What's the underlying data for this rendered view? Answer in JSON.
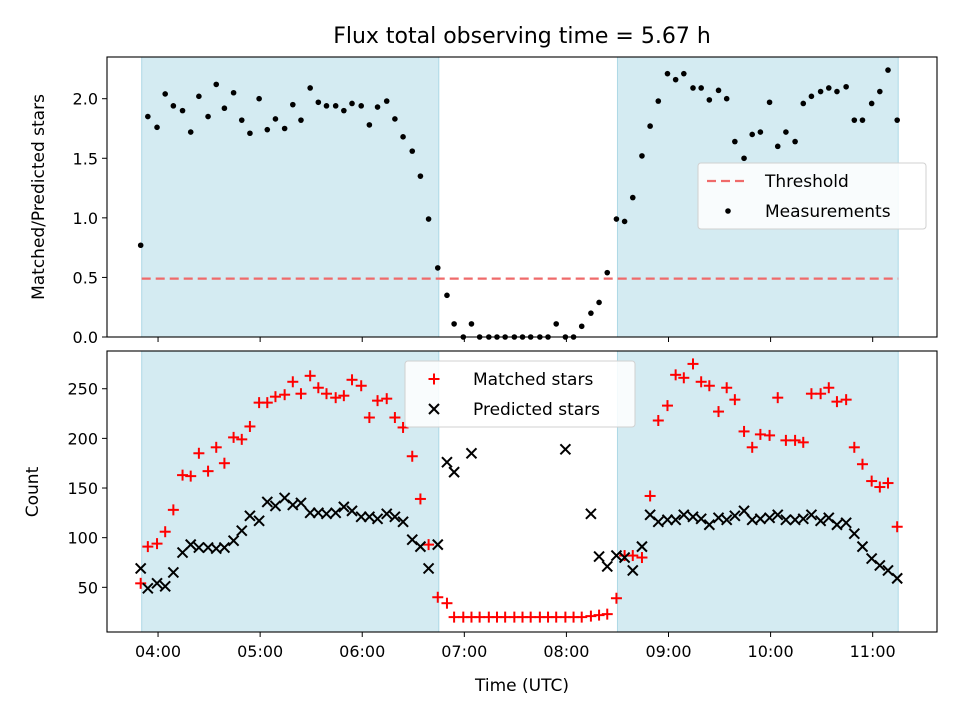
{
  "title": "Flux total observing time = 5.67 h",
  "colors": {
    "shade": "#add8e6",
    "threshold": "#ef6a6a",
    "matched": "#ff0000",
    "predicted": "#000000",
    "measurement": "#000000"
  },
  "chart_data": [
    {
      "type": "scatter",
      "panel": "top",
      "ylabel": "Matched/Predicted stars",
      "xlim": [
        3.5,
        11.63
      ],
      "ylim": [
        0,
        2.35
      ],
      "yticks": [
        0.0,
        0.5,
        1.0,
        1.5,
        2.0
      ],
      "ytick_labels": [
        "0.0",
        "0.5",
        "1.0",
        "1.5",
        "2.0"
      ],
      "shaded_intervals": [
        [
          3.84,
          6.75
        ],
        [
          8.5,
          11.25
        ]
      ],
      "legend": {
        "position": "center-right",
        "entries": [
          "Threshold",
          "Measurements"
        ]
      },
      "threshold": {
        "name": "Threshold",
        "value": 0.49,
        "x_range": [
          3.84,
          11.25
        ]
      },
      "series": [
        {
          "name": "Measurements",
          "x": [
            3.83,
            3.9,
            3.99,
            4.07,
            4.15,
            4.24,
            4.32,
            4.4,
            4.49,
            4.57,
            4.65,
            4.74,
            4.82,
            4.9,
            4.99,
            5.07,
            5.15,
            5.24,
            5.32,
            5.4,
            5.49,
            5.57,
            5.65,
            5.74,
            5.82,
            5.9,
            5.99,
            6.07,
            6.15,
            6.24,
            6.32,
            6.4,
            6.49,
            6.57,
            6.65,
            6.74,
            6.83,
            6.9,
            6.99,
            7.07,
            7.15,
            7.24,
            7.32,
            7.4,
            7.49,
            7.57,
            7.65,
            7.74,
            7.82,
            7.9,
            7.99,
            8.07,
            8.15,
            8.24,
            8.32,
            8.4,
            8.49,
            8.57,
            8.65,
            8.74,
            8.82,
            8.9,
            8.99,
            9.07,
            9.15,
            9.24,
            9.32,
            9.4,
            9.49,
            9.57,
            9.65,
            9.74,
            9.82,
            9.9,
            9.99,
            10.07,
            10.15,
            10.24,
            10.32,
            10.4,
            10.49,
            10.57,
            10.65,
            10.74,
            10.82,
            10.9,
            10.99,
            11.07,
            11.15,
            11.24
          ],
          "y": [
            0.77,
            1.85,
            1.76,
            2.04,
            1.94,
            1.9,
            1.72,
            2.02,
            1.85,
            2.12,
            1.92,
            2.05,
            1.82,
            1.71,
            2.0,
            1.74,
            1.83,
            1.75,
            1.95,
            1.82,
            2.09,
            1.97,
            1.94,
            1.94,
            1.9,
            1.96,
            1.94,
            1.78,
            1.93,
            1.98,
            1.83,
            1.68,
            1.56,
            1.35,
            0.99,
            0.58,
            0.35,
            0.11,
            0.0,
            0.11,
            0.0,
            0.0,
            0.0,
            0.0,
            0.0,
            0.0,
            0.0,
            0.0,
            0.0,
            0.11,
            0.0,
            0.0,
            0.09,
            0.2,
            0.29,
            0.54,
            0.99,
            0.97,
            1.17,
            1.52,
            1.77,
            1.98,
            2.21,
            2.16,
            2.21,
            2.09,
            2.09,
            1.99,
            2.07,
            2.0,
            1.64,
            1.5,
            1.7,
            1.72,
            1.97,
            1.6,
            1.72,
            1.64,
            1.96,
            2.02,
            2.06,
            2.09,
            2.06,
            2.1,
            1.82,
            1.82,
            1.96,
            2.06,
            2.24,
            1.82
          ]
        }
      ]
    },
    {
      "type": "scatter",
      "panel": "bottom",
      "ylabel": "Count",
      "xlabel": "Time (UTC)",
      "xlim": [
        3.5,
        11.63
      ],
      "ylim": [
        5,
        288
      ],
      "yticks": [
        50,
        100,
        150,
        200,
        250
      ],
      "xticks": [
        4,
        5,
        6,
        7,
        8,
        9,
        10,
        11
      ],
      "xtick_labels": [
        "04:00",
        "05:00",
        "06:00",
        "07:00",
        "08:00",
        "09:00",
        "10:00",
        "11:00"
      ],
      "shaded_intervals": [
        [
          3.84,
          6.75
        ],
        [
          8.5,
          11.25
        ]
      ],
      "legend": {
        "position": "upper-center",
        "entries": [
          "Matched stars",
          "Predicted stars"
        ]
      },
      "series": [
        {
          "name": "Matched stars",
          "marker": "+",
          "x": [
            3.83,
            3.9,
            3.99,
            4.07,
            4.15,
            4.24,
            4.32,
            4.4,
            4.49,
            4.57,
            4.65,
            4.74,
            4.82,
            4.9,
            4.99,
            5.07,
            5.15,
            5.24,
            5.32,
            5.4,
            5.49,
            5.57,
            5.65,
            5.74,
            5.82,
            5.9,
            5.99,
            6.07,
            6.15,
            6.24,
            6.32,
            6.4,
            6.49,
            6.57,
            6.65,
            6.74,
            6.83,
            6.9,
            6.99,
            7.07,
            7.15,
            7.24,
            7.32,
            7.4,
            7.49,
            7.57,
            7.65,
            7.74,
            7.82,
            7.9,
            7.99,
            8.07,
            8.15,
            8.24,
            8.32,
            8.4,
            8.49,
            8.57,
            8.65,
            8.74,
            8.82,
            8.9,
            8.99,
            9.07,
            9.15,
            9.24,
            9.32,
            9.4,
            9.49,
            9.57,
            9.65,
            9.74,
            9.82,
            9.9,
            9.99,
            10.07,
            10.15,
            10.24,
            10.32,
            10.4,
            10.49,
            10.57,
            10.65,
            10.74,
            10.82,
            10.9,
            10.99,
            11.07,
            11.15,
            11.24
          ],
          "y": [
            54,
            91,
            94,
            106,
            128,
            163,
            162,
            185,
            167,
            191,
            175,
            201,
            199,
            212,
            236,
            236,
            242,
            244,
            257,
            245,
            263,
            251,
            245,
            241,
            243,
            259,
            253,
            221,
            238,
            240,
            221,
            211,
            182,
            139,
            93,
            40,
            34,
            20,
            20,
            20,
            20,
            20,
            20,
            20,
            20,
            20,
            20,
            20,
            20,
            20,
            20,
            20,
            20,
            21,
            22,
            23,
            39,
            82,
            82,
            80,
            142,
            218,
            233,
            264,
            261,
            275,
            257,
            253,
            227,
            251,
            239,
            207,
            191,
            204,
            203,
            241,
            198,
            198,
            196,
            245,
            245,
            251,
            237,
            239,
            191,
            174,
            157,
            151,
            155,
            111
          ]
        },
        {
          "name": "Predicted stars",
          "marker": "x",
          "x": [
            3.83,
            3.9,
            3.99,
            4.07,
            4.15,
            4.24,
            4.32,
            4.4,
            4.49,
            4.57,
            4.65,
            4.74,
            4.82,
            4.9,
            4.99,
            5.07,
            5.15,
            5.24,
            5.32,
            5.4,
            5.49,
            5.57,
            5.65,
            5.74,
            5.82,
            5.9,
            5.99,
            6.07,
            6.15,
            6.24,
            6.32,
            6.4,
            6.49,
            6.57,
            6.65,
            6.74,
            6.83,
            6.9,
            7.07,
            7.99,
            8.24,
            8.32,
            8.4,
            8.49,
            8.57,
            8.65,
            8.74,
            8.82,
            8.9,
            8.99,
            9.07,
            9.15,
            9.24,
            9.32,
            9.4,
            9.49,
            9.57,
            9.65,
            9.74,
            9.82,
            9.9,
            9.99,
            10.07,
            10.15,
            10.24,
            10.32,
            10.4,
            10.49,
            10.57,
            10.65,
            10.74,
            10.82,
            10.9,
            10.99,
            11.07,
            11.15,
            11.24
          ],
          "y": [
            69,
            49,
            54,
            51,
            65,
            85,
            93,
            90,
            90,
            89,
            90,
            97,
            107,
            122,
            117,
            136,
            132,
            140,
            133,
            135,
            125,
            125,
            124,
            125,
            131,
            127,
            121,
            121,
            119,
            124,
            121,
            116,
            98,
            91,
            69,
            93,
            176,
            166,
            185,
            189,
            124,
            81,
            71,
            82,
            80,
            67,
            91,
            123,
            116,
            118,
            118,
            123,
            121,
            119,
            113,
            120,
            118,
            122,
            127,
            118,
            119,
            120,
            123,
            118,
            118,
            119,
            123,
            117,
            120,
            113,
            115,
            104,
            91,
            79,
            72,
            67,
            59
          ]
        }
      ]
    }
  ]
}
